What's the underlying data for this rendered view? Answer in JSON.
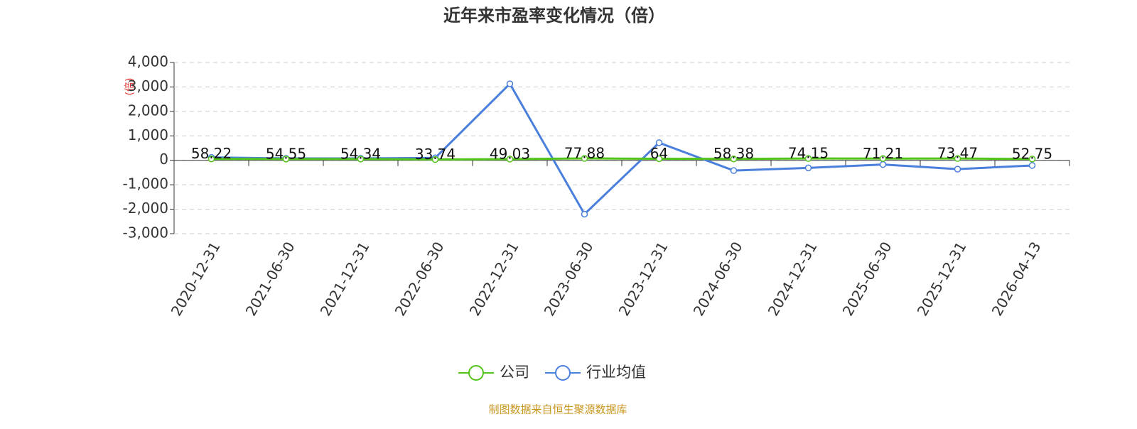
{
  "chart_data": {
    "type": "line",
    "title": "近年来市盈率变化情况（倍）",
    "y_label": "(倍)",
    "footer": "制图数据来自恒生聚源数据库",
    "categories": [
      "2020-12-31",
      "2021-06-30",
      "2021-12-31",
      "2022-06-30",
      "2022-12-31",
      "2023-06-30",
      "2023-12-31",
      "2024-06-30",
      "2024-12-31",
      "2025-06-30",
      "2025-12-31",
      "2026-04-13"
    ],
    "series": [
      {
        "name": "公司",
        "color": "#52c41a",
        "values": [
          58.22,
          54.55,
          54.34,
          33.74,
          49.03,
          77.88,
          64,
          58.38,
          74.15,
          71.21,
          73.47,
          52.75
        ],
        "show_labels": true
      },
      {
        "name": "行业均值",
        "color": "#4a7fdc",
        "values": [
          120,
          80,
          80,
          100,
          3130,
          -2200,
          720,
          -420,
          -310,
          -170,
          -360,
          -210
        ]
      }
    ],
    "ylim": [
      -3000,
      4000
    ],
    "yticks": [
      {
        "value": -3000,
        "label": "-3,000"
      },
      {
        "value": -2000,
        "label": "-2,000"
      },
      {
        "value": -1000,
        "label": "-1,000"
      },
      0,
      {
        "value": 1000,
        "label": "1,000"
      },
      {
        "value": 2000,
        "label": "2,000"
      },
      {
        "value": 3000,
        "label": "3,000"
      },
      {
        "value": 4000,
        "label": "4,000"
      }
    ],
    "grid": true
  }
}
